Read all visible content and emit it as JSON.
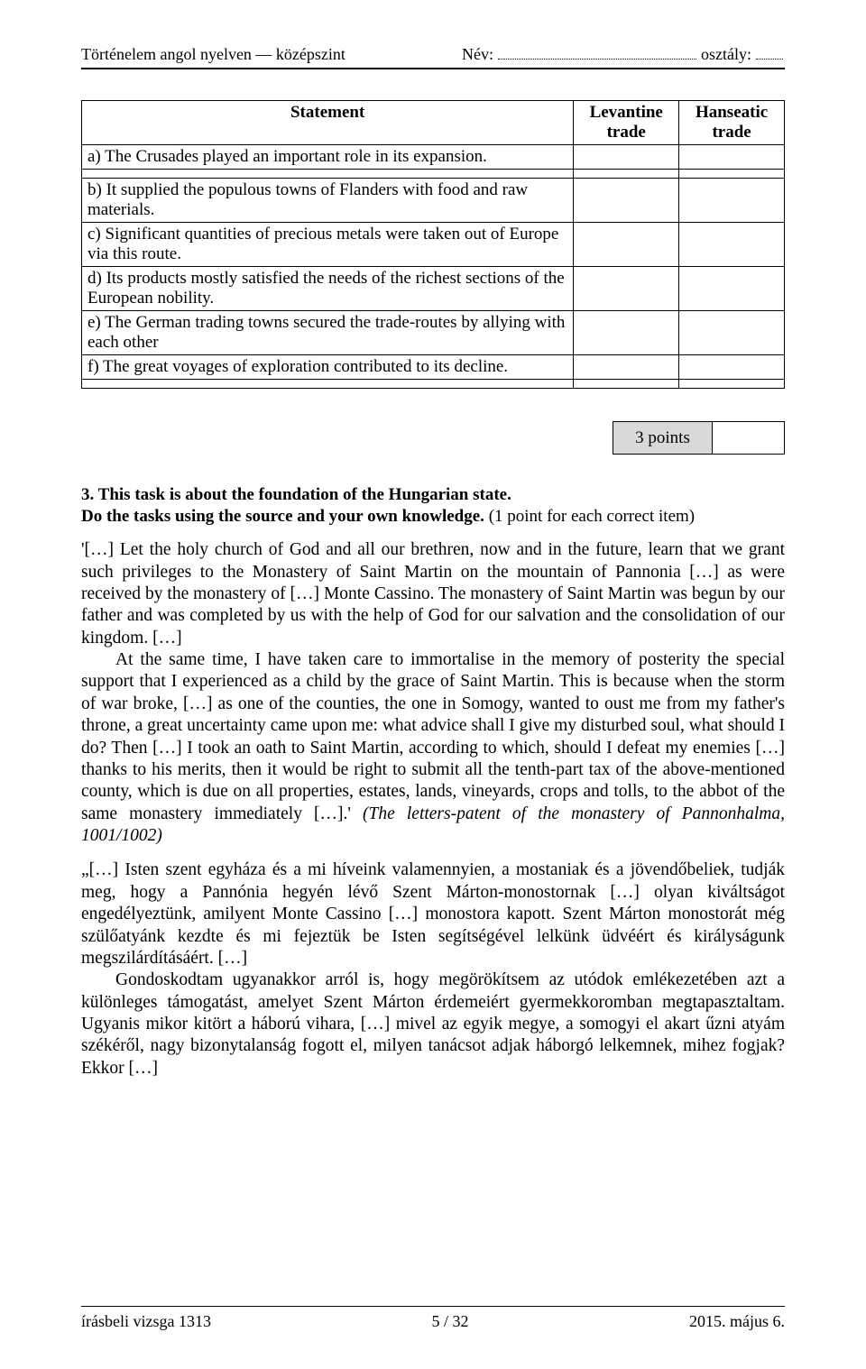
{
  "header": {
    "left": "Történelem angol nyelven — középszint",
    "name_label": "Név:",
    "class_label": "osztály:"
  },
  "table": {
    "col_statement": "Statement",
    "col_levantine": "Levantine trade",
    "col_hanseatic": "Hanseatic trade",
    "rows": [
      "a) The Crusades played an important role in its expansion.",
      "b) It supplied the populous towns of Flanders with food and raw materials.",
      "c) Significant quantities of precious metals were taken out of Europe via this route.",
      "d) Its products mostly satisfied the needs of the richest sections of the European nobility.",
      "e) The German trading towns secured the trade-routes by allying with each other",
      "f) The great voyages of exploration contributed to its decline."
    ]
  },
  "points": {
    "label": "3 points"
  },
  "task3": {
    "heading": "3. This task is about the foundation of the Hungarian state.",
    "sub_bold": "Do the tasks using the source and your own knowledge.",
    "sub_paren": " (1 point for each correct item)"
  },
  "para_en1": "'[…] Let the holy church of God and all our brethren, now and in the future, learn that we grant such privileges to the Monastery of Saint Martin on the mountain of Pannonia […] as were received by the monastery of […] Monte Cassino. The monastery of Saint Martin was begun by our father and was completed by us with the help of God for our salvation and the consolidation of our kingdom. […]",
  "para_en2a": "At the same time, I have taken care to immortalise in the memory of posterity the special support that I experienced as a child by the grace of Saint Martin. This is because when the storm of war broke, […] as one of the counties, the one in Somogy, wanted to oust me from my father's throne, a great uncertainty came upon me: what advice shall I give my disturbed soul, what should I do? Then […] I took an oath to Saint Martin, according to which, should I defeat my enemies […] thanks to his merits, then it would be right to submit all the tenth-part tax of the above-mentioned county, which is due on all properties, estates, lands, vineyards, crops and tolls, to the abbot of the same monastery immediately […].' ",
  "para_en2b": "(The letters-patent of the monastery of Pannonhalma, 1001/1002)",
  "para_hu1": "„[…] Isten szent egyháza és a mi híveink valamennyien, a mostaniak és a jövendőbeliek, tudják meg, hogy a Pannónia hegyén lévő Szent Márton-monostornak […] olyan kiváltságot engedélyeztünk, amilyent Monte Cassino […] monostora kapott. Szent Márton monostorát még szülőatyánk kezdte és mi fejeztük be Isten segítségével lelkünk üdvéért és királyságunk megszilárdításáért. […]",
  "para_hu2": "Gondoskodtam ugyanakkor arról is, hogy megörökítsem az utódok emlékezetében azt a különleges támogatást, amelyet Szent Márton érdemeiért gyermekkoromban megtapasztaltam. Ugyanis mikor kitört a háború vihara, […] mivel az egyik megye, a somogyi el akart űzni atyám székéről, nagy bizonytalanság fogott el, milyen tanácsot adjak háborgó lelkemnek, mihez fogjak? Ekkor […]",
  "footer": {
    "left": "írásbeli vizsga 1313",
    "center": "5 / 32",
    "right": "2015. május 6."
  }
}
